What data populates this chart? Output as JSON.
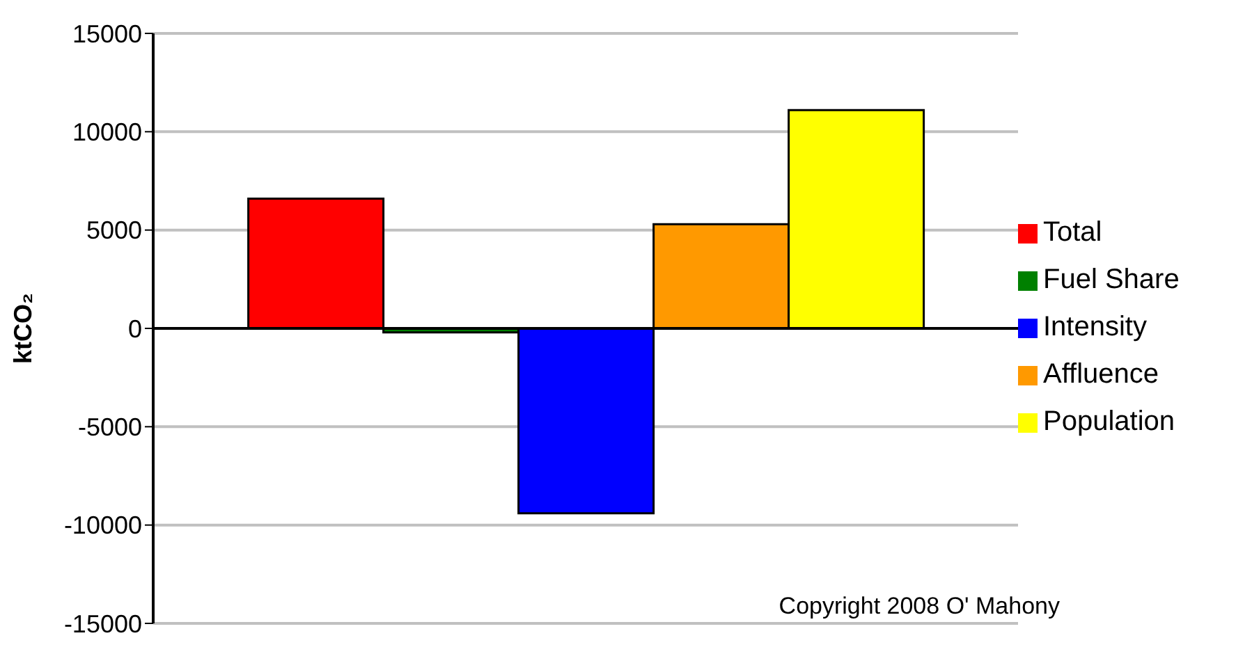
{
  "chart_data": {
    "type": "bar",
    "ylabel": "ktCO₂",
    "categories": [
      null
    ],
    "series": [
      {
        "name": "Total",
        "color": "#ff0000",
        "values": [
          6600
        ]
      },
      {
        "name": "Fuel Share",
        "color": "#008000",
        "values": [
          -200
        ]
      },
      {
        "name": "Intensity",
        "color": "#0000ff",
        "values": [
          -9400
        ]
      },
      {
        "name": "Affluence",
        "color": "#ff9900",
        "values": [
          5300
        ]
      },
      {
        "name": "Population",
        "color": "#ffff00",
        "values": [
          11100
        ]
      }
    ],
    "ylim": [
      -15000,
      15000
    ],
    "yticks": [
      -15000,
      -10000,
      -5000,
      0,
      5000,
      10000,
      15000
    ],
    "grid": "y",
    "legend": "right",
    "annotations": [
      "Copyright 2008 O' Mahony"
    ]
  }
}
